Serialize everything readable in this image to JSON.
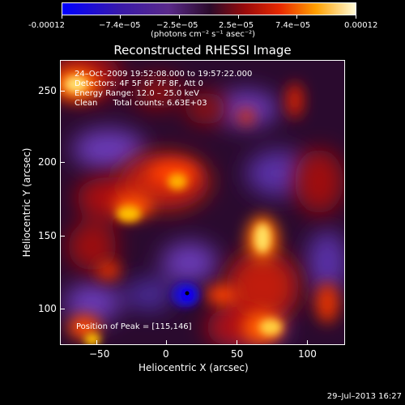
{
  "colorbar": {
    "tick_labels": [
      "-0.00012",
      "−7.4e−05",
      "−2.5e−05",
      "2.5e−05",
      "7.4e−05",
      "0.00012"
    ],
    "unit_label": "(photons cm⁻² s⁻¹ asec⁻²)"
  },
  "title": "Reconstructed RHESSI Image",
  "annotations": {
    "time_range": "24–Oct–2009 19:52:08.000 to 19:57:22.000",
    "detectors": "Detectors: 4F 5F 6F 7F 8F, Att 0",
    "energy_range": "Energy Range: 12.0 – 25.0 keV",
    "clean_counts": "Clean      Total counts: 6.63E+03",
    "peak_position": "Position of Peak = [115,146]"
  },
  "axes": {
    "x_title": "Heliocentric X (arcsec)",
    "y_title": "Heliocentric Y (arcsec)",
    "x_ticks": [
      "−50",
      "0",
      "50",
      "100"
    ],
    "y_ticks": [
      "250",
      "200",
      "150",
      "100"
    ]
  },
  "timestamp": "29–Jul–2013 16:27",
  "colors": {
    "background": "#000000",
    "text": "#ffffff"
  },
  "image_data": {
    "type": "heatmap",
    "x_range": [
      -72,
      122
    ],
    "y_range": [
      76,
      270
    ],
    "peak": [
      115,
      146
    ]
  }
}
